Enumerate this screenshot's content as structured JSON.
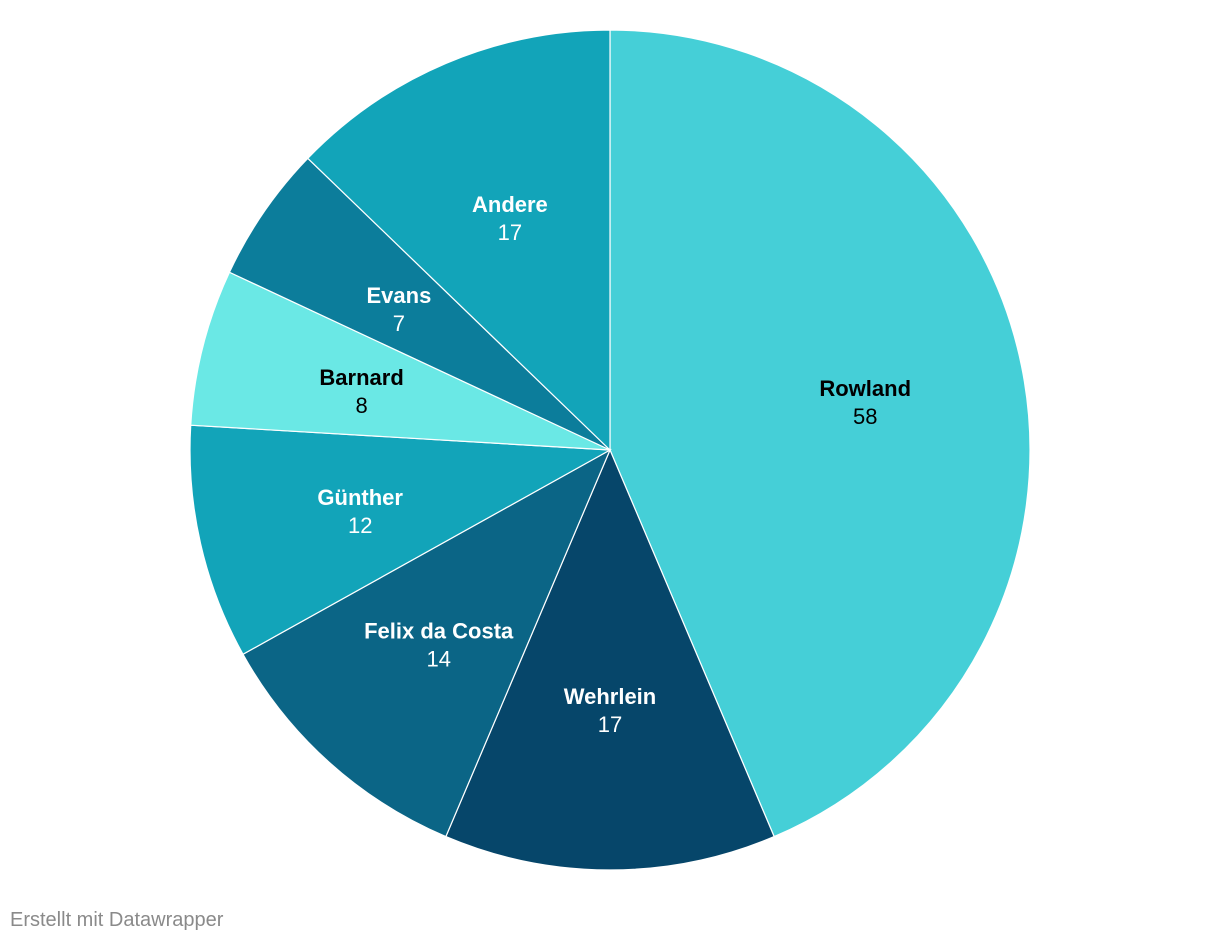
{
  "chart_data": {
    "type": "pie",
    "categories": [
      "Rowland",
      "Wehrlein",
      "Felix da Costa",
      "Günther",
      "Barnard",
      "Evans",
      "Andere"
    ],
    "values": [
      58,
      17,
      14,
      12,
      8,
      7,
      17
    ],
    "colors": [
      "#45cfd7",
      "#06466a",
      "#0b6586",
      "#12a4b9",
      "#6ae8e5",
      "#0c7d9b",
      "#12a4b9"
    ],
    "label_colors": [
      "#000000",
      "#ffffff",
      "#ffffff",
      "#ffffff",
      "#000000",
      "#ffffff",
      "#ffffff"
    ],
    "start": "12 o'clock",
    "direction": "clockwise"
  },
  "footer": {
    "credit": "Erstellt mit Datawrapper"
  }
}
